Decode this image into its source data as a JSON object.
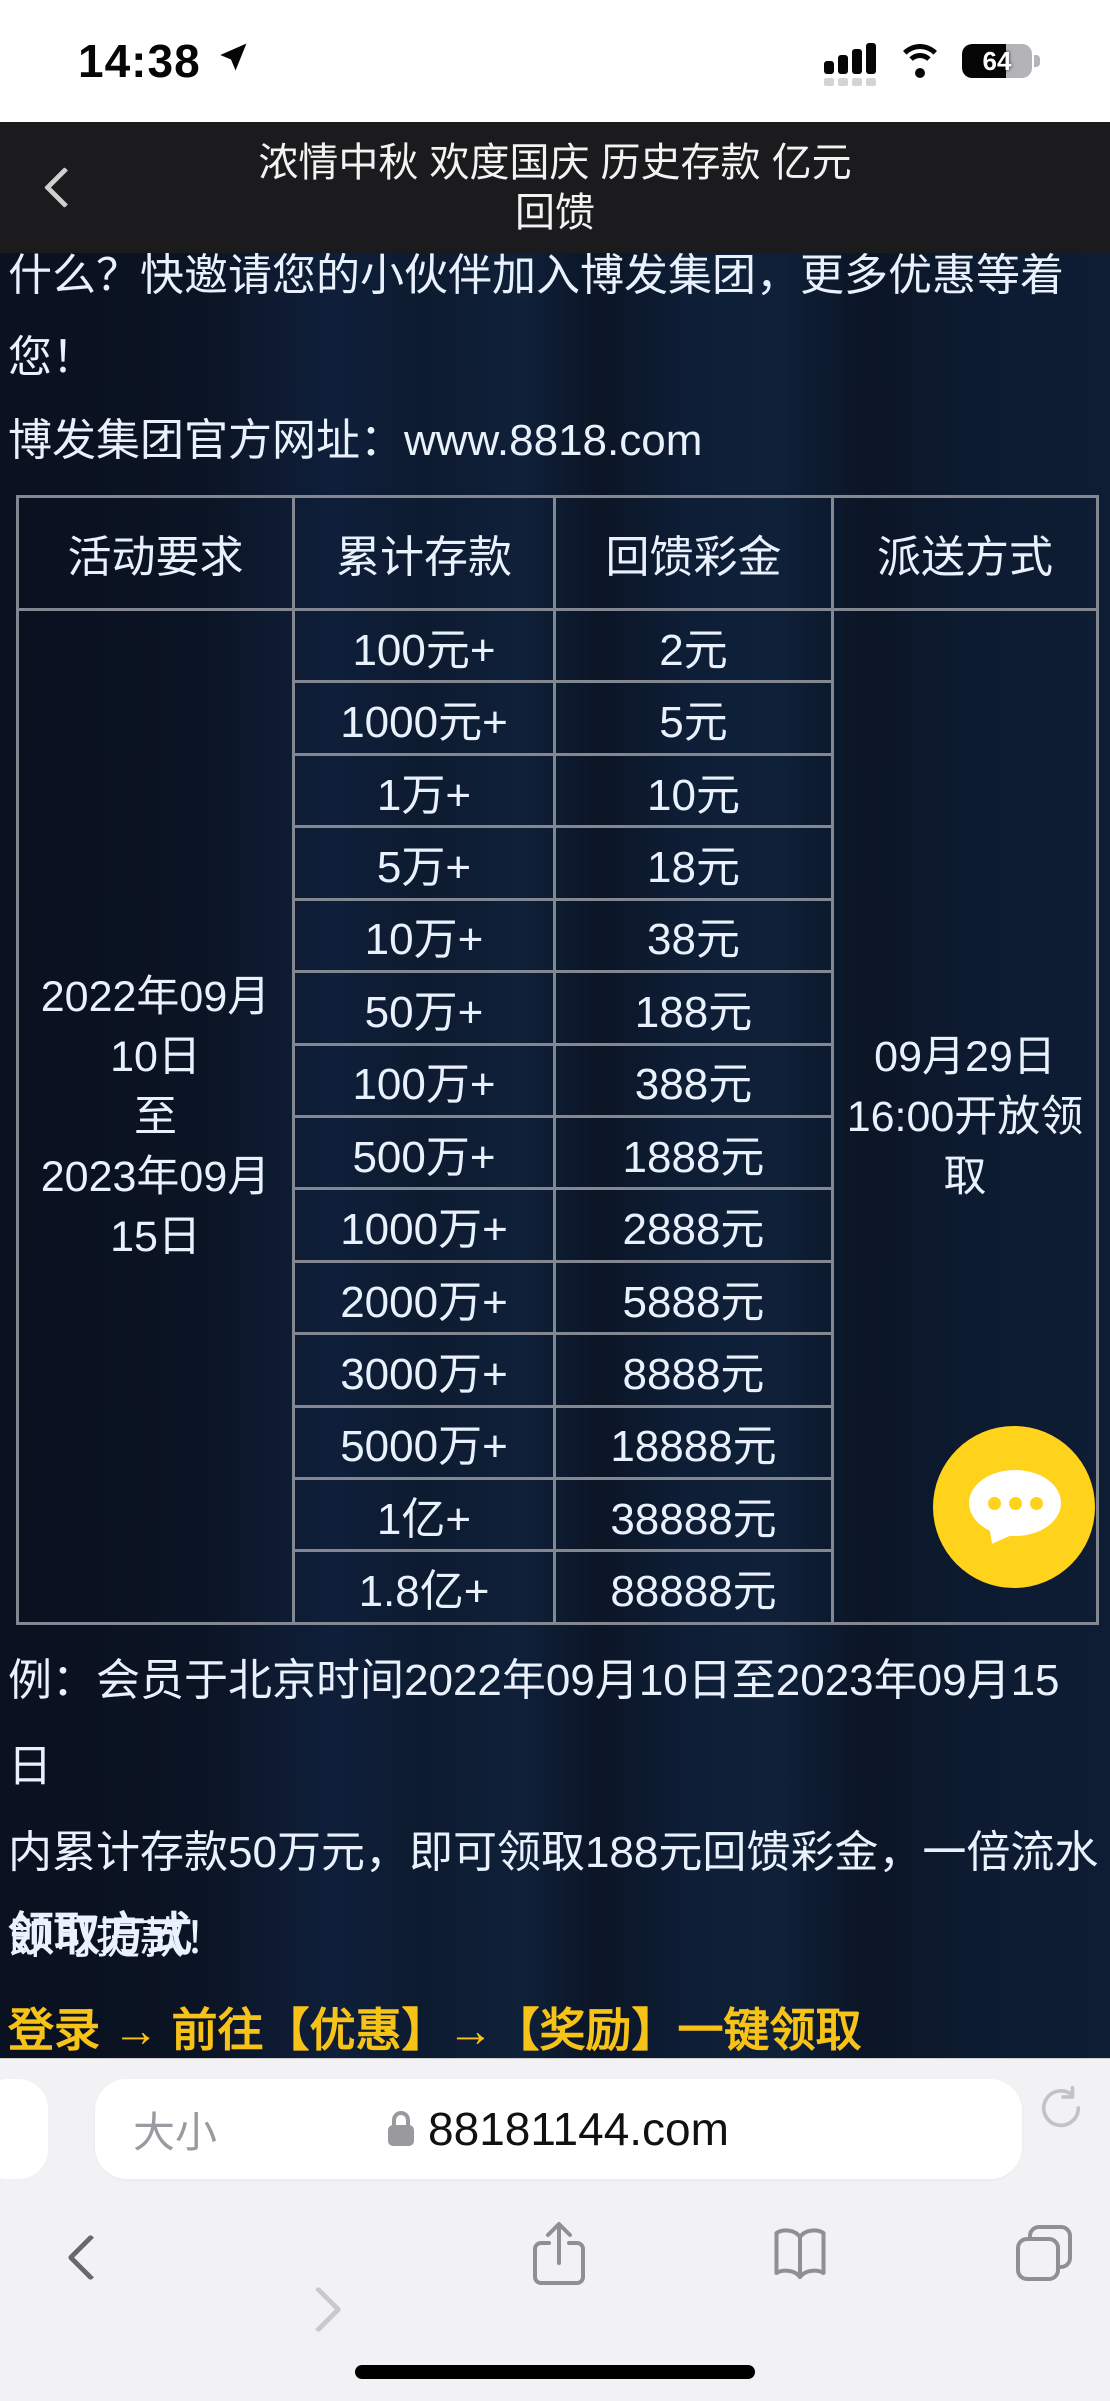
{
  "status_bar": {
    "time": "14:38",
    "battery_percent": "64"
  },
  "navbar": {
    "title": "浓情中秋 欢度国庆 历史存款 亿元\n回馈"
  },
  "content": {
    "intro": "什么？快邀请您的小伙伴加入博发集团，更多优惠等着\n您！",
    "site_line": "博发集团官方网址：www.8818.com",
    "example": "例：会员于北京时间2022年09月10日至2023年09月15日\n内累计存款50万元，即可领取188元回馈彩金，一倍流水\n即可提款！",
    "claim_heading": "领取方式",
    "cta": "登录 → 前往【优惠】→【奖励】一键领取"
  },
  "table": {
    "headers": [
      "活动要求",
      "累计存款",
      "回馈彩金",
      "派送方式"
    ],
    "date_range": "2022年09月\n10日\n至\n2023年09月\n15日",
    "delivery": "09月29日\n16:00开放领\n取",
    "rows": [
      {
        "deposit": "100元+",
        "bonus": "2元"
      },
      {
        "deposit": "1000元+",
        "bonus": "5元"
      },
      {
        "deposit": "1万+",
        "bonus": "10元"
      },
      {
        "deposit": "5万+",
        "bonus": "18元"
      },
      {
        "deposit": "10万+",
        "bonus": "38元"
      },
      {
        "deposit": "50万+",
        "bonus": "188元"
      },
      {
        "deposit": "100万+",
        "bonus": "388元"
      },
      {
        "deposit": "500万+",
        "bonus": "1888元"
      },
      {
        "deposit": "1000万+",
        "bonus": "2888元"
      },
      {
        "deposit": "2000万+",
        "bonus": "5888元"
      },
      {
        "deposit": "3000万+",
        "bonus": "8888元"
      },
      {
        "deposit": "5000万+",
        "bonus": "18888元"
      },
      {
        "deposit": "1亿+",
        "bonus": "38888元"
      },
      {
        "deposit": "1.8亿+",
        "bonus": "88888元"
      }
    ]
  },
  "safari": {
    "size_label": "大小",
    "url": "88181144.com"
  },
  "colors": {
    "cta_yellow": "#f8c318",
    "fab_yellow": "#ffd21c",
    "page_navy": "#0d1b30",
    "header_dark": "#1b1b1d"
  }
}
